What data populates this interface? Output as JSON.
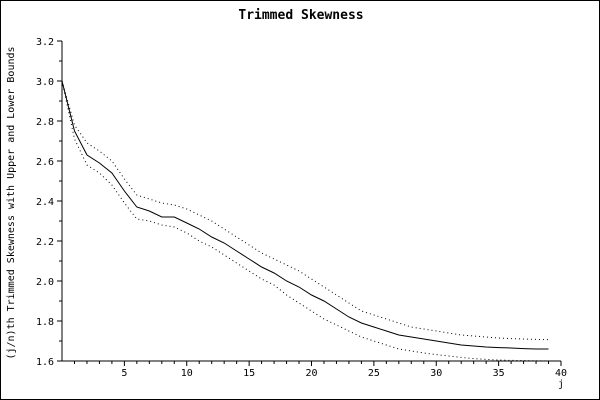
{
  "chart_data": {
    "type": "line",
    "title": "Trimmed Skewness",
    "xlabel": "j",
    "ylabel": "(j/n)th Trimmed Skewness with Upper and Lower Bounds",
    "xlim": [
      0,
      40
    ],
    "ylim": [
      1.6,
      3.2
    ],
    "x_ticks": [
      5,
      10,
      15,
      20,
      25,
      30,
      35,
      40
    ],
    "x_tick_labels": [
      "5",
      "10",
      "15",
      "20",
      "25",
      "30",
      "35",
      "40"
    ],
    "y_ticks": [
      1.6,
      1.8,
      2.0,
      2.2,
      2.4,
      2.6,
      2.8,
      3.0,
      3.2
    ],
    "y_tick_labels": [
      "1.6",
      "1.8",
      "2.0",
      "2.2",
      "2.4",
      "2.6",
      "2.8",
      "3.0",
      "3.2"
    ],
    "grid": false,
    "line_color": "#000000",
    "x": [
      0,
      1,
      2,
      3,
      4,
      5,
      6,
      7,
      8,
      9,
      10,
      11,
      12,
      13,
      14,
      15,
      16,
      17,
      18,
      19,
      20,
      21,
      22,
      23,
      24,
      25,
      26,
      27,
      28,
      29,
      30,
      31,
      32,
      33,
      34,
      35,
      36,
      37,
      38,
      39
    ],
    "series": [
      {
        "style": "solid",
        "values": [
          3.0,
          2.75,
          2.63,
          2.59,
          2.54,
          2.45,
          2.37,
          2.35,
          2.32,
          2.32,
          2.29,
          2.26,
          2.22,
          2.19,
          2.15,
          2.11,
          2.07,
          2.04,
          2.0,
          1.97,
          1.93,
          1.9,
          1.86,
          1.82,
          1.79,
          1.77,
          1.75,
          1.73,
          1.72,
          1.71,
          1.7,
          1.69,
          1.68,
          1.675,
          1.67,
          1.667,
          1.665,
          1.662,
          1.66,
          1.66
        ]
      },
      {
        "style": "dotted",
        "values": [
          3.0,
          2.78,
          2.69,
          2.65,
          2.6,
          2.51,
          2.43,
          2.41,
          2.39,
          2.38,
          2.36,
          2.33,
          2.3,
          2.26,
          2.22,
          2.18,
          2.14,
          2.11,
          2.08,
          2.05,
          2.01,
          1.97,
          1.93,
          1.89,
          1.85,
          1.83,
          1.81,
          1.79,
          1.77,
          1.76,
          1.75,
          1.74,
          1.73,
          1.725,
          1.72,
          1.715,
          1.712,
          1.71,
          1.708,
          1.707
        ]
      },
      {
        "style": "dotted",
        "values": [
          3.0,
          2.71,
          2.58,
          2.54,
          2.48,
          2.39,
          2.31,
          2.3,
          2.28,
          2.27,
          2.24,
          2.2,
          2.17,
          2.13,
          2.09,
          2.05,
          2.01,
          1.98,
          1.93,
          1.89,
          1.85,
          1.81,
          1.78,
          1.75,
          1.72,
          1.7,
          1.68,
          1.66,
          1.65,
          1.64,
          1.632,
          1.625,
          1.618,
          1.612,
          1.608,
          1.605,
          1.603,
          1.602,
          1.601,
          1.6
        ]
      }
    ]
  }
}
